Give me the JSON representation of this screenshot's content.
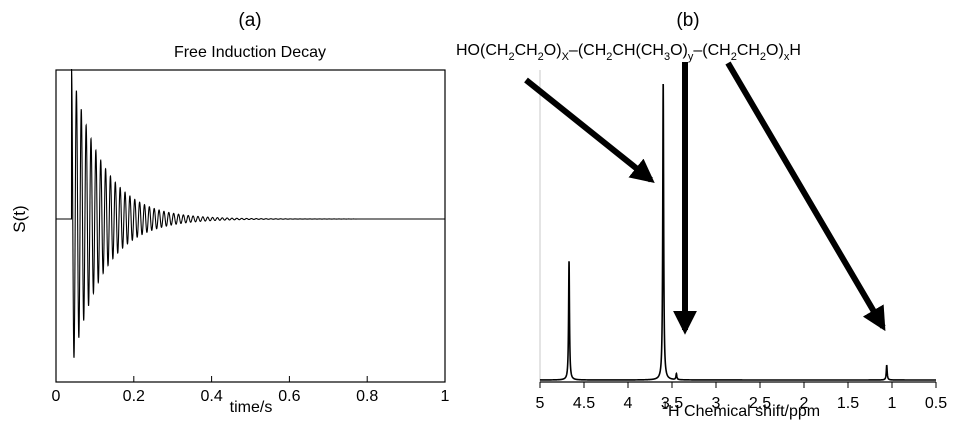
{
  "panels": {
    "a": {
      "panel_label": "(a)",
      "title": "Free Induction Decay",
      "ylabel": "S(t)",
      "xlabel": "time/s"
    },
    "b": {
      "panel_label": "(b)",
      "xlabel_sup": "1",
      "xlabel_main": "H Chemical shift/ppm"
    }
  },
  "formula": [
    {
      "t": "HO(CH"
    },
    {
      "t": "2",
      "sub": true
    },
    {
      "t": "CH"
    },
    {
      "t": "2",
      "sub": true
    },
    {
      "t": "O)"
    },
    {
      "t": "X",
      "sub": true
    },
    {
      "t": "–(CH"
    },
    {
      "t": "2",
      "sub": true
    },
    {
      "t": "CH(CH"
    },
    {
      "t": "3",
      "sub": true
    },
    {
      "t": "O)"
    },
    {
      "t": "y",
      "sub": true
    },
    {
      "t": "–(CH"
    },
    {
      "t": "2",
      "sub": true
    },
    {
      "t": "CH"
    },
    {
      "t": "2",
      "sub": true
    },
    {
      "t": "O)"
    },
    {
      "t": "x",
      "sub": true
    },
    {
      "t": "H"
    }
  ],
  "chart_data": [
    {
      "type": "line",
      "title": "Free Induction Decay",
      "xlabel": "time/s",
      "ylabel": "S(t)",
      "xlim": [
        0,
        1
      ],
      "xticks": [
        0,
        0.2,
        0.4,
        0.6,
        0.8,
        1
      ],
      "yticks_shown": false,
      "series": [
        {
          "signal_start_s": 0.04,
          "oscillation_period_s": 0.0125,
          "decay_time_constant_s": 0.08,
          "peak_amplitude_relative": 1.0
        }
      ]
    },
    {
      "type": "line",
      "xlabel": "1H Chemical shift/ppm",
      "xlim": [
        5,
        0.5
      ],
      "x_reversed": true,
      "xticks": [
        5,
        4.5,
        4,
        3.5,
        3,
        2.5,
        2,
        1.5,
        1,
        0.5
      ],
      "yticks_shown": false,
      "peaks": [
        {
          "shift_ppm": 4.67,
          "relative_height": 0.4
        },
        {
          "shift_ppm": 3.6,
          "relative_height": 1.0
        },
        {
          "shift_ppm": 3.45,
          "relative_height": 0.02
        },
        {
          "shift_ppm": 1.06,
          "relative_height": 0.05
        }
      ],
      "annotations": [
        {
          "type": "arrow",
          "from": "HO(CH2CH2O)x",
          "to_shift_ppm": 3.6
        },
        {
          "type": "arrow",
          "from": "(CH2CH(CH3)O)y",
          "to_shift_ppm": 3.45
        },
        {
          "type": "arrow",
          "from": "(CH2CH2O)xH",
          "to_shift_ppm": 1.06
        }
      ]
    }
  ]
}
